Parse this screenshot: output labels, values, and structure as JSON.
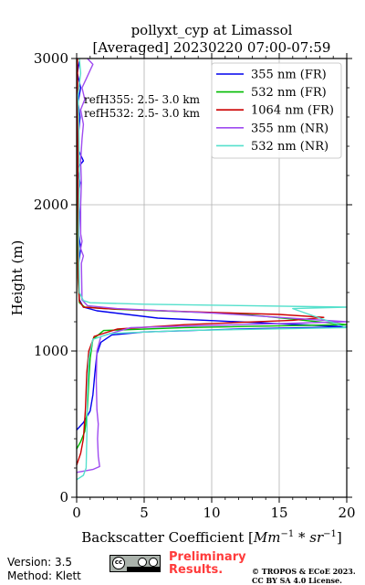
{
  "chart_data": {
    "type": "line",
    "title": "pollyxt_cyp at Limassol",
    "subtitle": "[Averaged] 20230220 07:00-07:59",
    "xlabel_text": "Backscatter Coefficient [",
    "xlabel_math": "Mm",
    "xlabel_sup1": "−1",
    "xlabel_mid": " * ",
    "xlabel_math2": "sr",
    "xlabel_sup2": "−1",
    "xlabel_close": "]",
    "ylabel": "Height (m)",
    "xlim": [
      0,
      20
    ],
    "ylim": [
      0,
      3000
    ],
    "x_ticks": [
      0,
      5,
      10,
      15,
      20
    ],
    "y_ticks": [
      0,
      1000,
      2000,
      3000
    ],
    "grid": true,
    "legend_position": "top-right",
    "annotations": [
      "refH355:  2.5- 3.0 km",
      "refH532:  2.5- 3.0 km"
    ],
    "series": [
      {
        "name": "355 nm (FR)",
        "color": "#0000ee",
        "points": [
          [
            0,
            460
          ],
          [
            0.5,
            510
          ],
          [
            1.0,
            590
          ],
          [
            1.2,
            700
          ],
          [
            1.35,
            850
          ],
          [
            1.5,
            980
          ],
          [
            1.8,
            1060
          ],
          [
            2.6,
            1110
          ],
          [
            5,
            1130
          ],
          [
            12,
            1150
          ],
          [
            20,
            1165
          ],
          [
            6,
            1225
          ],
          [
            1.5,
            1275
          ],
          [
            0.5,
            1300
          ],
          [
            0.2,
            1350
          ],
          [
            0.15,
            1600
          ],
          [
            0.3,
            1700
          ],
          [
            0.15,
            1800
          ],
          [
            0.2,
            1950
          ],
          [
            0.1,
            2050
          ],
          [
            0.25,
            2150
          ],
          [
            0.05,
            2250
          ],
          [
            0.5,
            2300
          ],
          [
            0.1,
            2380
          ],
          [
            0.15,
            2500
          ],
          [
            0.25,
            2600
          ],
          [
            0.1,
            2700
          ],
          [
            0.3,
            2800
          ],
          [
            0.05,
            2900
          ],
          [
            0.2,
            2980
          ]
        ]
      },
      {
        "name": "532 nm (FR)",
        "color": "#00bb00",
        "points": [
          [
            0,
            330
          ],
          [
            0.3,
            380
          ],
          [
            0.6,
            450
          ],
          [
            0.8,
            600
          ],
          [
            0.9,
            800
          ],
          [
            1.0,
            950
          ],
          [
            1.2,
            1080
          ],
          [
            2.0,
            1140
          ],
          [
            8,
            1160
          ],
          [
            20,
            1180
          ],
          [
            12,
            1255
          ],
          [
            3,
            1285
          ],
          [
            0.6,
            1300
          ],
          [
            0.2,
            1330
          ],
          [
            0.1,
            1500
          ],
          [
            0.05,
            2000
          ],
          [
            0.05,
            2500
          ],
          [
            0.02,
            3000
          ]
        ]
      },
      {
        "name": "1064 nm (FR)",
        "color": "#cc0000",
        "points": [
          [
            0,
            220
          ],
          [
            0.3,
            300
          ],
          [
            0.5,
            400
          ],
          [
            0.65,
            600
          ],
          [
            0.75,
            850
          ],
          [
            0.9,
            1000
          ],
          [
            1.3,
            1100
          ],
          [
            3,
            1150
          ],
          [
            8,
            1180
          ],
          [
            16,
            1210
          ],
          [
            18.3,
            1230
          ],
          [
            15,
            1250
          ],
          [
            8,
            1270
          ],
          [
            2,
            1290
          ],
          [
            0.5,
            1300
          ],
          [
            0.2,
            1340
          ],
          [
            0.12,
            1500
          ],
          [
            0.1,
            2000
          ],
          [
            0.08,
            2500
          ],
          [
            0.06,
            3000
          ]
        ]
      },
      {
        "name": "355 nm (NR)",
        "color": "#9f4bf0",
        "points": [
          [
            0,
            170
          ],
          [
            1.2,
            190
          ],
          [
            1.7,
            210
          ],
          [
            1.6,
            280
          ],
          [
            1.55,
            400
          ],
          [
            1.6,
            500
          ],
          [
            1.5,
            600
          ],
          [
            1.45,
            800
          ],
          [
            1.5,
            1000
          ],
          [
            1.8,
            1100
          ],
          [
            4,
            1160
          ],
          [
            14,
            1185
          ],
          [
            20,
            1200
          ],
          [
            10,
            1260
          ],
          [
            3,
            1290
          ],
          [
            0.8,
            1310
          ],
          [
            0.4,
            1350
          ],
          [
            0.35,
            1600
          ],
          [
            0.5,
            1650
          ],
          [
            0.3,
            1700
          ],
          [
            0.4,
            1750
          ],
          [
            0.3,
            1800
          ],
          [
            0.3,
            2000
          ],
          [
            0.35,
            2150
          ],
          [
            0.3,
            2300
          ],
          [
            0.4,
            2450
          ],
          [
            0.5,
            2550
          ],
          [
            0.3,
            2650
          ],
          [
            0.6,
            2720
          ],
          [
            0.4,
            2800
          ],
          [
            0.7,
            2860
          ],
          [
            1.0,
            2920
          ],
          [
            1.2,
            2960
          ],
          [
            0.8,
            3000
          ]
        ]
      },
      {
        "name": "532 nm (NR)",
        "color": "#55e0cc",
        "points": [
          [
            0,
            120
          ],
          [
            0.5,
            150
          ],
          [
            0.7,
            200
          ],
          [
            0.75,
            400
          ],
          [
            0.8,
            700
          ],
          [
            0.9,
            950
          ],
          [
            1.2,
            1080
          ],
          [
            2.5,
            1120
          ],
          [
            8,
            1140
          ],
          [
            20,
            1160
          ],
          [
            16,
            1290
          ],
          [
            20,
            1300
          ],
          [
            5,
            1320
          ],
          [
            1.0,
            1330
          ],
          [
            0.5,
            1345
          ],
          [
            0.2,
            1400
          ],
          [
            0.15,
            1800
          ],
          [
            0.2,
            2200
          ],
          [
            0.15,
            2600
          ],
          [
            0.1,
            2750
          ],
          [
            0.3,
            2900
          ],
          [
            0.2,
            3000
          ]
        ]
      }
    ]
  },
  "footer": {
    "version": "Version: 3.5",
    "method": "Method: Klett",
    "preliminary_line1": "Preliminary",
    "preliminary_line2": "Results.",
    "copyright_line1": "© TROPOS & ECoE 2023.",
    "copyright_line2": "CC BY SA 4.0 License.",
    "cc_badge_text": "cc"
  }
}
